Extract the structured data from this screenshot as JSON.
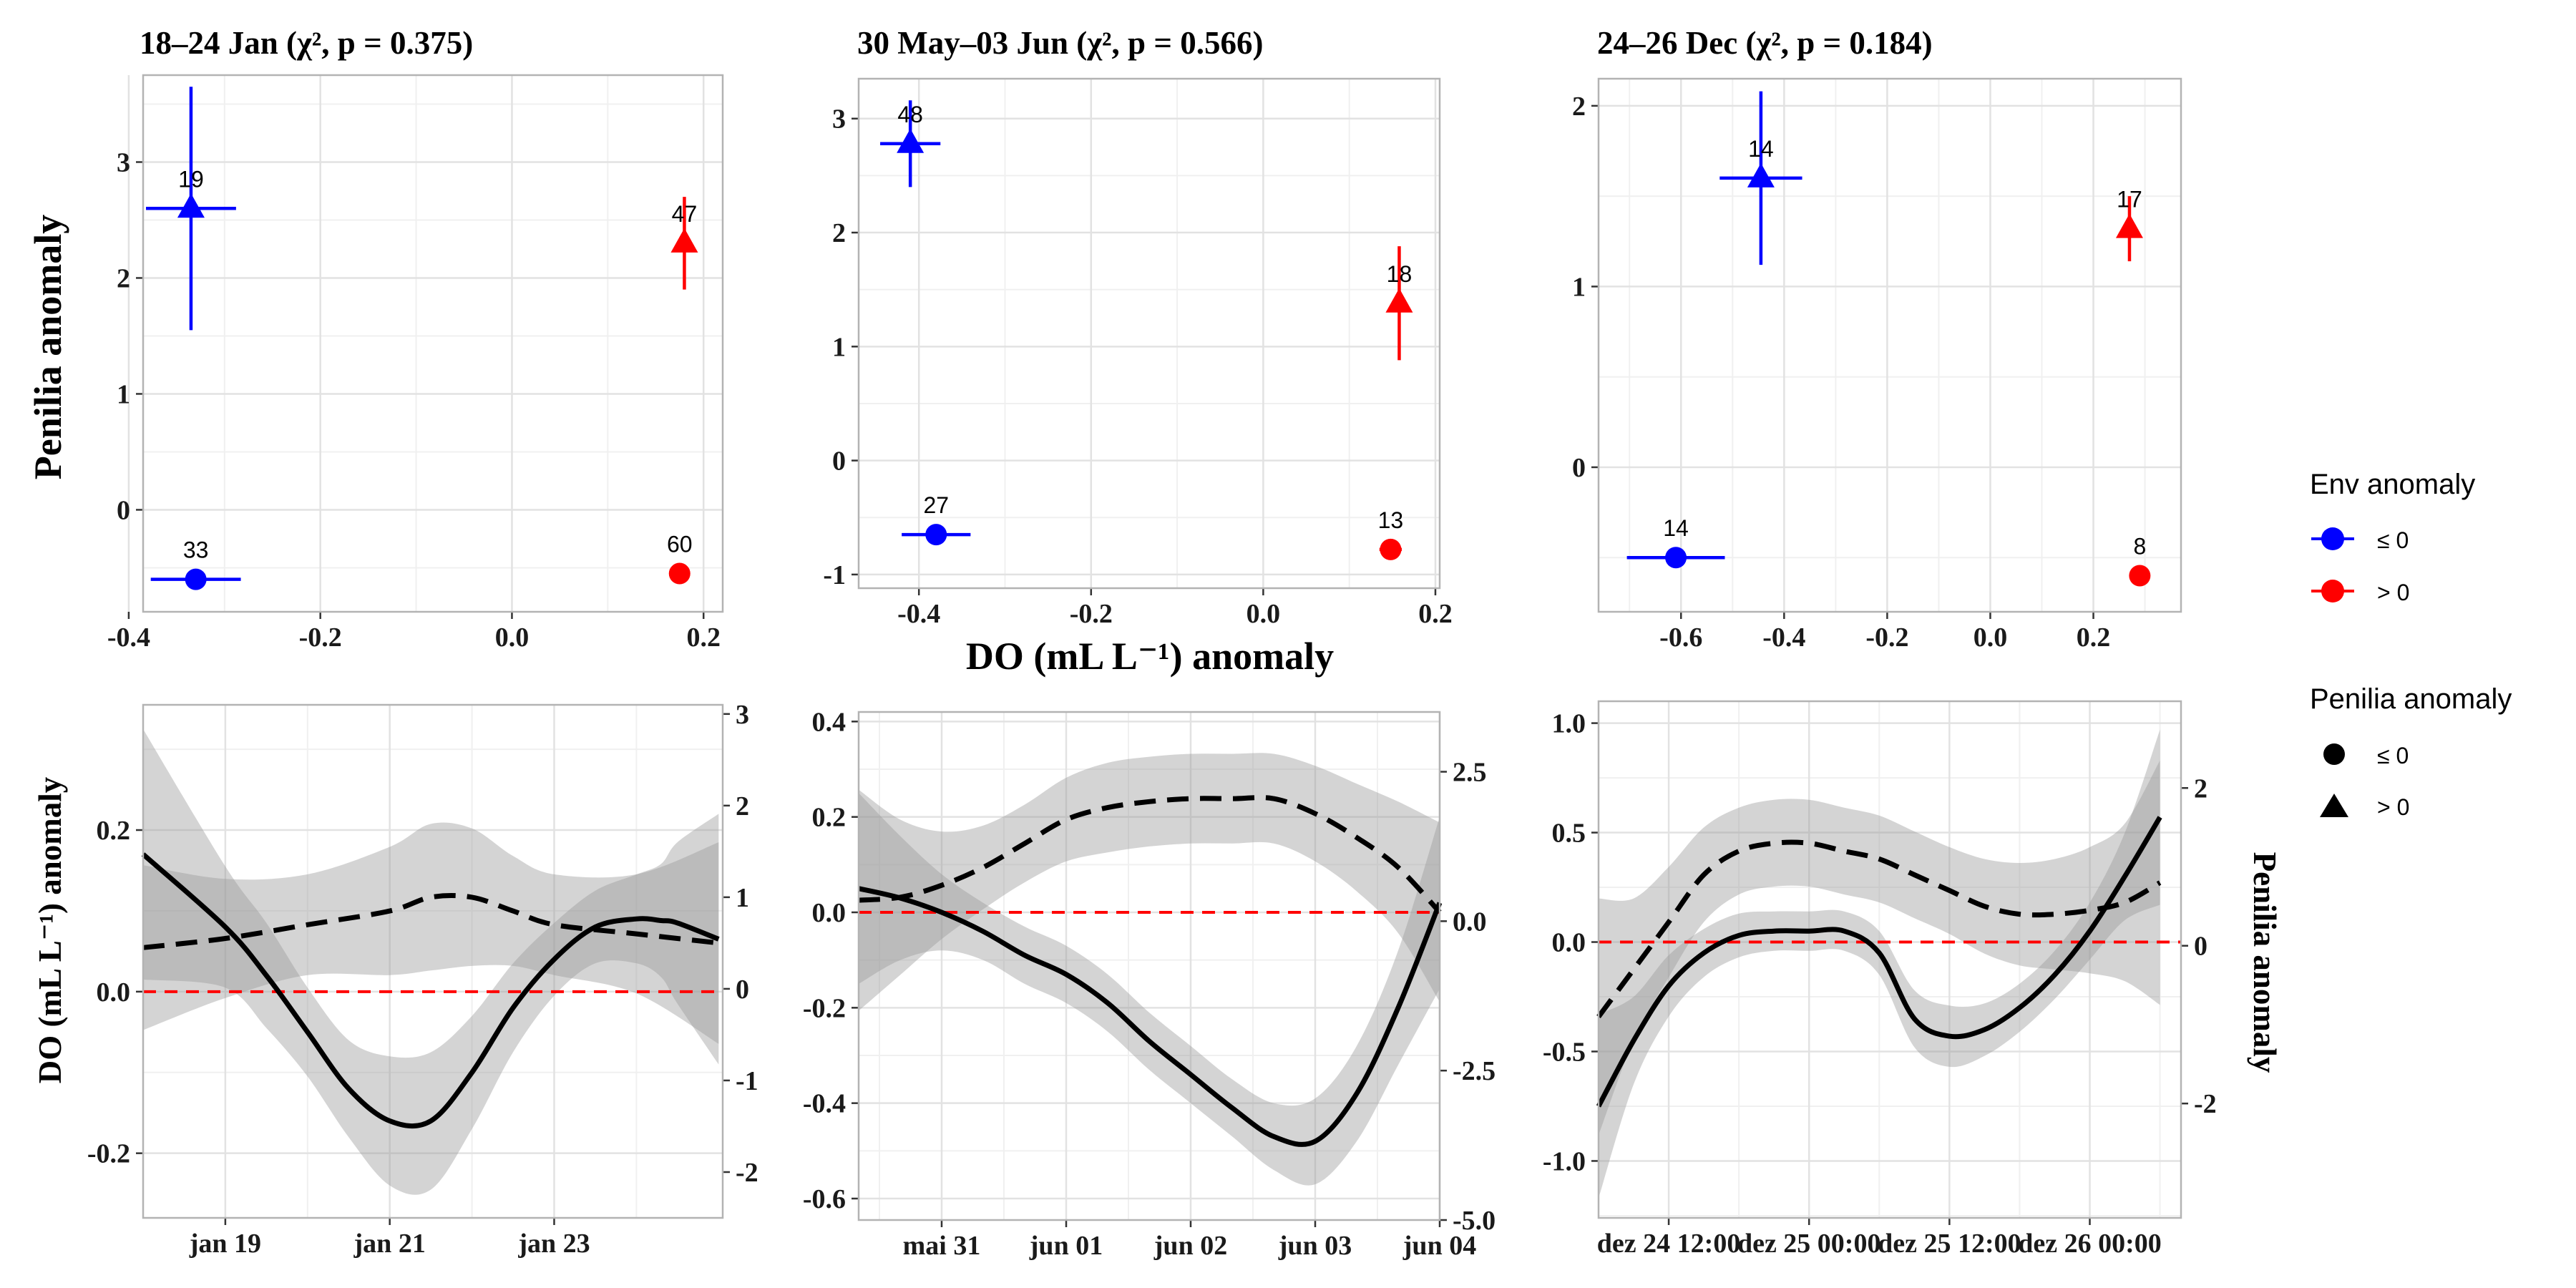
{
  "figure": {
    "shared_x_label": "DO (mL L⁻¹) anomaly",
    "top_y_label": "Penilia anomaly",
    "bottom_left_y_label": "DO (mL L⁻¹) anomaly",
    "bottom_right_y_label": "Penilia anomaly"
  },
  "legend": {
    "env_title": "Env anomaly",
    "env_items": [
      {
        "label": "≤ 0",
        "color": "#0000ff"
      },
      {
        "label": "> 0",
        "color": "#ff0000"
      }
    ],
    "penilia_title": "Penilia anomaly",
    "penilia_items": [
      {
        "label": "≤ 0",
        "shape": "circle"
      },
      {
        "label": "> 0",
        "shape": "triangle"
      }
    ]
  },
  "chart_data": [
    {
      "type": "scatter",
      "title": "18–24 Jan (χ², p = 0.375)",
      "xlim": [
        -0.385,
        0.22
      ],
      "ylim": [
        -0.88,
        3.75
      ],
      "xticks": [
        -0.4,
        -0.2,
        0.0,
        0.2
      ],
      "xtick_labels": [
        "-0.4",
        "-0.2",
        "0.0",
        "0.2"
      ],
      "yticks": [
        0,
        1,
        2,
        3
      ],
      "ytick_labels": [
        "0",
        "1",
        "2",
        "3"
      ],
      "points": [
        {
          "x": -0.335,
          "y": 2.6,
          "shape": "triangle",
          "color": "#0000ff",
          "n": "19",
          "xerr": 0.047,
          "yerr": 1.05
        },
        {
          "x": 0.18,
          "y": 2.3,
          "shape": "triangle",
          "color": "#ff0000",
          "n": "47",
          "xerr": 0.0,
          "yerr": 0.4
        },
        {
          "x": -0.33,
          "y": -0.6,
          "shape": "circle",
          "color": "#0000ff",
          "n": "33",
          "xerr": 0.047,
          "yerr": 0.0
        },
        {
          "x": 0.175,
          "y": -0.55,
          "shape": "circle",
          "color": "#ff0000",
          "n": "60",
          "xerr": 0.0,
          "yerr": 0.0
        }
      ]
    },
    {
      "type": "scatter",
      "title": "30 May–03 Jun (χ², p = 0.566)",
      "xlim": [
        -0.47,
        0.205
      ],
      "ylim": [
        -1.12,
        3.35
      ],
      "xticks": [
        -0.4,
        -0.2,
        0.0,
        0.2
      ],
      "xtick_labels": [
        "-0.4",
        "-0.2",
        "0.0",
        "0.2"
      ],
      "yticks": [
        -1,
        0,
        1,
        2,
        3
      ],
      "ytick_labels": [
        "-1",
        "0",
        "1",
        "2",
        "3"
      ],
      "points": [
        {
          "x": -0.41,
          "y": 2.78,
          "shape": "triangle",
          "color": "#0000ff",
          "n": "48",
          "xerr": 0.035,
          "yerr": 0.38
        },
        {
          "x": 0.158,
          "y": 1.38,
          "shape": "triangle",
          "color": "#ff0000",
          "n": "18",
          "xerr": 0.0,
          "yerr": 0.5
        },
        {
          "x": -0.38,
          "y": -0.65,
          "shape": "circle",
          "color": "#0000ff",
          "n": "27",
          "xerr": 0.04,
          "yerr": 0.0
        },
        {
          "x": 0.148,
          "y": -0.78,
          "shape": "circle",
          "color": "#ff0000",
          "n": "13",
          "xerr": 0.013,
          "yerr": 0.08
        }
      ]
    },
    {
      "type": "scatter",
      "title": "24–26 Dec (χ², p = 0.184)",
      "xlim": [
        -0.76,
        0.37
      ],
      "ylim": [
        -0.8,
        2.15
      ],
      "xticks": [
        -0.6,
        -0.4,
        -0.2,
        0.0,
        0.2
      ],
      "xtick_labels": [
        "-0.6",
        "-0.4",
        "-0.2",
        "0.0",
        "0.2"
      ],
      "yticks": [
        0,
        1,
        2
      ],
      "ytick_labels": [
        "0",
        "1",
        "2"
      ],
      "points": [
        {
          "x": -0.445,
          "y": 1.6,
          "shape": "triangle",
          "color": "#0000ff",
          "n": "14",
          "xerr": 0.08,
          "yerr": 0.48
        },
        {
          "x": 0.27,
          "y": 1.32,
          "shape": "triangle",
          "color": "#ff0000",
          "n": "17",
          "xerr": 0.0,
          "yerr": 0.18
        },
        {
          "x": -0.61,
          "y": -0.5,
          "shape": "circle",
          "color": "#0000ff",
          "n": "14",
          "xerr": 0.095,
          "yerr": 0.0
        },
        {
          "x": 0.29,
          "y": -0.6,
          "shape": "circle",
          "color": "#ff0000",
          "n": "8",
          "xerr": 0.0,
          "yerr": 0.0
        }
      ]
    },
    {
      "type": "line",
      "xlim": [
        0,
        7.05
      ],
      "xticks": [
        1,
        3,
        5
      ],
      "xtick_labels": [
        "jan 19",
        "jan 21",
        "jan 23"
      ],
      "ylim": [
        -0.28,
        0.355
      ],
      "yticks": [
        -0.2,
        0.0,
        0.2
      ],
      "ytick_labels": [
        "-0.2",
        "0.0",
        "0.2"
      ],
      "y2lim": [
        -2.5,
        3.1
      ],
      "y2ticks": [
        -2,
        -1,
        0,
        1,
        2,
        3
      ],
      "y2tick_labels": [
        "-2",
        "-1",
        "0",
        "1",
        "2",
        "3"
      ],
      "zero_line": 0,
      "do_x": [
        0,
        1,
        1.5,
        2,
        2.5,
        3,
        3.5,
        4,
        4.5,
        5,
        5.5,
        6,
        6.3,
        6.5,
        7
      ],
      "do_y": [
        0.17,
        0.08,
        0.02,
        -0.05,
        -0.12,
        -0.16,
        -0.16,
        -0.1,
        -0.02,
        0.04,
        0.08,
        0.09,
        0.088,
        0.085,
        0.065
      ],
      "do_band": [
        0.155,
        0.075,
        0.065,
        0.055,
        0.06,
        0.08,
        0.085,
        0.07,
        0.055,
        0.045,
        0.045,
        0.055,
        0.07,
        0.1,
        0.155
      ],
      "penilia_x": [
        0,
        1,
        2,
        3,
        3.5,
        4,
        4.5,
        5,
        6,
        7
      ],
      "penilia_y": [
        0.45,
        0.55,
        0.7,
        0.85,
        1.0,
        1.0,
        0.85,
        0.7,
        0.6,
        0.5
      ],
      "penilia_band": [
        0.9,
        0.65,
        0.55,
        0.7,
        0.8,
        0.75,
        0.6,
        0.55,
        0.65,
        1.1
      ]
    },
    {
      "type": "line",
      "xlim": [
        0,
        7.0
      ],
      "xticks": [
        1,
        2.5,
        4,
        5.5,
        7
      ],
      "xtick_labels": [
        "mai 31",
        "jun 01",
        "jun 02",
        "jun 03",
        "jun 04"
      ],
      "ylim": [
        -0.645,
        0.42
      ],
      "yticks": [
        -0.6,
        -0.4,
        -0.2,
        0.0,
        0.2,
        0.4
      ],
      "ytick_labels": [
        "-0.6",
        "-0.4",
        "-0.2",
        "0.0",
        "0.2",
        "0.4"
      ],
      "y2lim": [
        -5.0,
        3.5
      ],
      "y2ticks": [
        -5,
        -2.5,
        0,
        2.5
      ],
      "y2tick_labels": [
        "-5.0",
        "-2.5",
        "0.0",
        "2.5"
      ],
      "zero_line": 0,
      "do_x": [
        0,
        0.5,
        1,
        1.5,
        2,
        2.5,
        3,
        3.5,
        4,
        4.5,
        5,
        5.5,
        6,
        6.5,
        7
      ],
      "do_y": [
        0.05,
        0.03,
        0.0,
        -0.04,
        -0.09,
        -0.13,
        -0.19,
        -0.27,
        -0.34,
        -0.41,
        -0.47,
        -0.48,
        -0.38,
        -0.2,
        0.02
      ],
      "do_band": [
        0.2,
        0.13,
        0.08,
        0.06,
        0.06,
        0.06,
        0.06,
        0.06,
        0.06,
        0.06,
        0.07,
        0.09,
        0.1,
        0.12,
        0.18
      ],
      "penilia_x": [
        0,
        0.5,
        1,
        1.5,
        2,
        2.5,
        3,
        3.5,
        4,
        4.5,
        5,
        5.5,
        6,
        6.5,
        7
      ],
      "penilia_y": [
        0.35,
        0.4,
        0.6,
        0.9,
        1.3,
        1.7,
        1.9,
        2.0,
        2.05,
        2.05,
        2.05,
        1.8,
        1.4,
        0.9,
        0.15
      ],
      "penilia_band": [
        1.85,
        1.3,
        0.9,
        0.7,
        0.65,
        0.7,
        0.75,
        0.75,
        0.75,
        0.75,
        0.75,
        0.8,
        0.9,
        1.1,
        1.5
      ]
    },
    {
      "type": "line",
      "xlim": [
        0,
        8.3
      ],
      "xticks": [
        1,
        3,
        5,
        7
      ],
      "xtick_labels": [
        "dez 24 12:00",
        "dez 25 00:00",
        "dez 25 12:00",
        "dez 26 00:00"
      ],
      "ylim": [
        -1.26,
        1.1
      ],
      "yticks": [
        -1.0,
        -0.5,
        0.0,
        0.5,
        1.0
      ],
      "ytick_labels": [
        "-1.0",
        "-0.5",
        "0.0",
        "0.5",
        "1.0"
      ],
      "y2lim": [
        -3.45,
        3.1
      ],
      "y2ticks": [
        -2,
        0,
        2
      ],
      "y2tick_labels": [
        "-2",
        "0",
        "2"
      ],
      "zero_line": 0,
      "do_x": [
        0,
        0.5,
        1,
        1.5,
        2,
        2.5,
        3,
        3.5,
        4,
        4.5,
        5,
        5.5,
        6,
        6.5,
        7,
        7.5,
        8
      ],
      "do_y": [
        -0.75,
        -0.45,
        -0.2,
        -0.05,
        0.03,
        0.05,
        0.05,
        0.05,
        -0.05,
        -0.35,
        -0.43,
        -0.4,
        -0.3,
        -0.15,
        0.05,
        0.3,
        0.57
      ],
      "do_band": [
        0.42,
        0.2,
        0.14,
        0.11,
        0.1,
        0.09,
        0.09,
        0.09,
        0.1,
        0.13,
        0.14,
        0.12,
        0.11,
        0.11,
        0.13,
        0.2,
        0.4
      ],
      "penilia_x": [
        0,
        0.5,
        1,
        1.5,
        2,
        2.5,
        3,
        3.5,
        4,
        4.5,
        5,
        5.5,
        6,
        6.5,
        7,
        7.5,
        8
      ],
      "penilia_y": [
        -0.9,
        -0.3,
        0.3,
        0.9,
        1.2,
        1.3,
        1.3,
        1.2,
        1.1,
        0.9,
        0.7,
        0.5,
        0.4,
        0.4,
        0.45,
        0.55,
        0.8
      ],
      "penilia_band": [
        1.5,
        0.9,
        0.7,
        0.6,
        0.55,
        0.55,
        0.55,
        0.55,
        0.55,
        0.55,
        0.55,
        0.6,
        0.65,
        0.7,
        0.8,
        1.0,
        1.55
      ]
    }
  ]
}
